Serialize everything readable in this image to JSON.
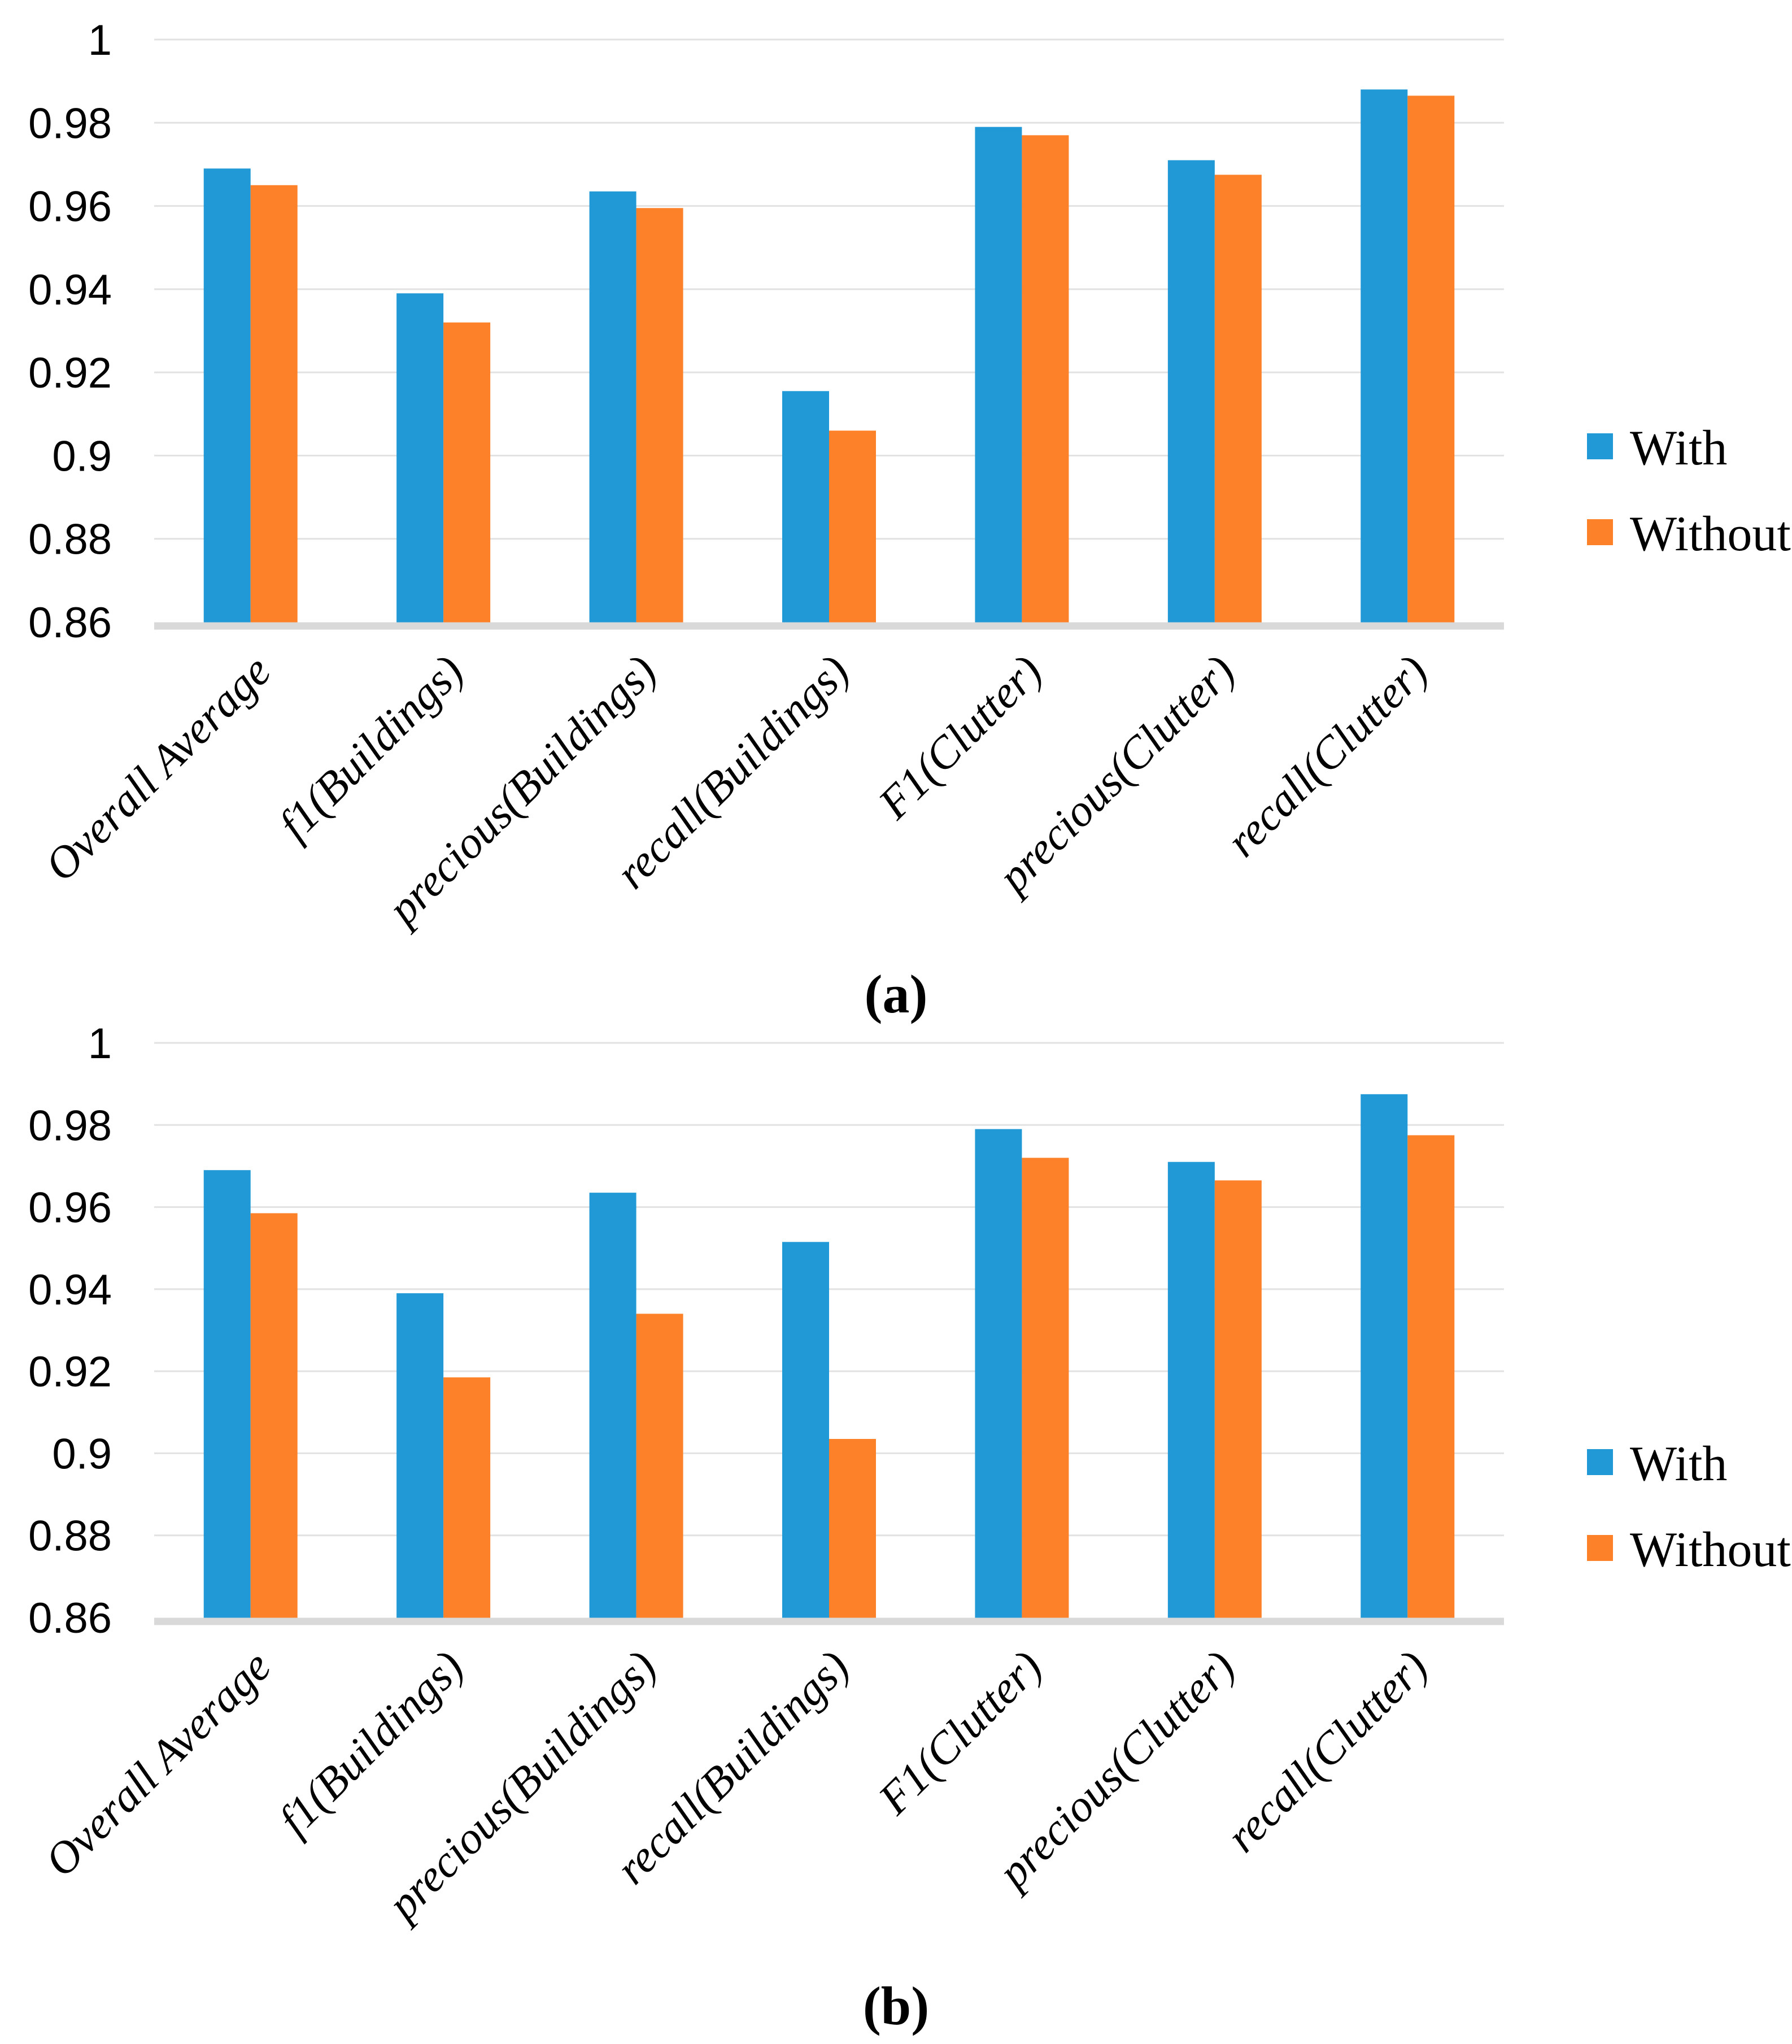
{
  "figure": {
    "background": "#ffffff",
    "panels": [
      {
        "caption": "(a)"
      },
      {
        "caption": "(b)"
      }
    ]
  },
  "colors": {
    "with_series": "#2199D6",
    "without_series": "#FD8128",
    "gridline": "#E2E2E2",
    "axis_baseline": "#D9D9D9",
    "text": "#000000"
  },
  "legend": {
    "position": "right",
    "items": [
      {
        "label": "With",
        "swatch_color": "#2199D6"
      },
      {
        "label": "Without",
        "swatch_color": "#FD8128"
      }
    ]
  },
  "chart_data": [
    {
      "type": "bar",
      "panel_label": "(a)",
      "title": "",
      "xlabel": "",
      "ylabel": "",
      "ylim": [
        0.86,
        1.0
      ],
      "grid": true,
      "legend_position": "right",
      "ytick_labels": [
        "1",
        "0.98",
        "0.96",
        "0.94",
        "0.92",
        "0.9",
        "0.88",
        "0.86"
      ],
      "ytick_values": [
        1,
        0.98,
        0.96,
        0.94,
        0.92,
        0.9,
        0.88,
        0.86
      ],
      "categories": [
        "Overall Average",
        "f1(Buildings)",
        "precious(Buildings)",
        "recall(Buildings)",
        "F1(Clutter)",
        "precious(Clutter)",
        "recall(Clutter)"
      ],
      "series": [
        {
          "name": "With",
          "color": "#2199D6",
          "values": [
            0.969,
            0.939,
            0.9635,
            0.9155,
            0.979,
            0.971,
            0.988
          ]
        },
        {
          "name": "Without",
          "color": "#FD8128",
          "values": [
            0.965,
            0.932,
            0.9595,
            0.906,
            0.977,
            0.9675,
            0.9865
          ]
        }
      ]
    },
    {
      "type": "bar",
      "panel_label": "(b)",
      "title": "",
      "xlabel": "",
      "ylabel": "",
      "ylim": [
        0.86,
        1.0
      ],
      "grid": true,
      "legend_position": "right",
      "ytick_labels": [
        "1",
        "0.98",
        "0.96",
        "0.94",
        "0.92",
        "0.9",
        "0.88",
        "0.86"
      ],
      "ytick_values": [
        1,
        0.98,
        0.96,
        0.94,
        0.92,
        0.9,
        0.88,
        0.86
      ],
      "categories": [
        "Overall Average",
        "f1(Buildings)",
        "precious(Buildings)",
        "recall(Buildings)",
        "F1(Clutter)",
        "precious(Clutter)",
        "recall(Clutter)"
      ],
      "series": [
        {
          "name": "With",
          "color": "#2199D6",
          "values": [
            0.969,
            0.939,
            0.9635,
            0.9515,
            0.979,
            0.971,
            0.9875
          ]
        },
        {
          "name": "Without",
          "color": "#FD8128",
          "values": [
            0.9585,
            0.9185,
            0.934,
            0.9035,
            0.972,
            0.9665,
            0.9775
          ]
        }
      ]
    }
  ]
}
